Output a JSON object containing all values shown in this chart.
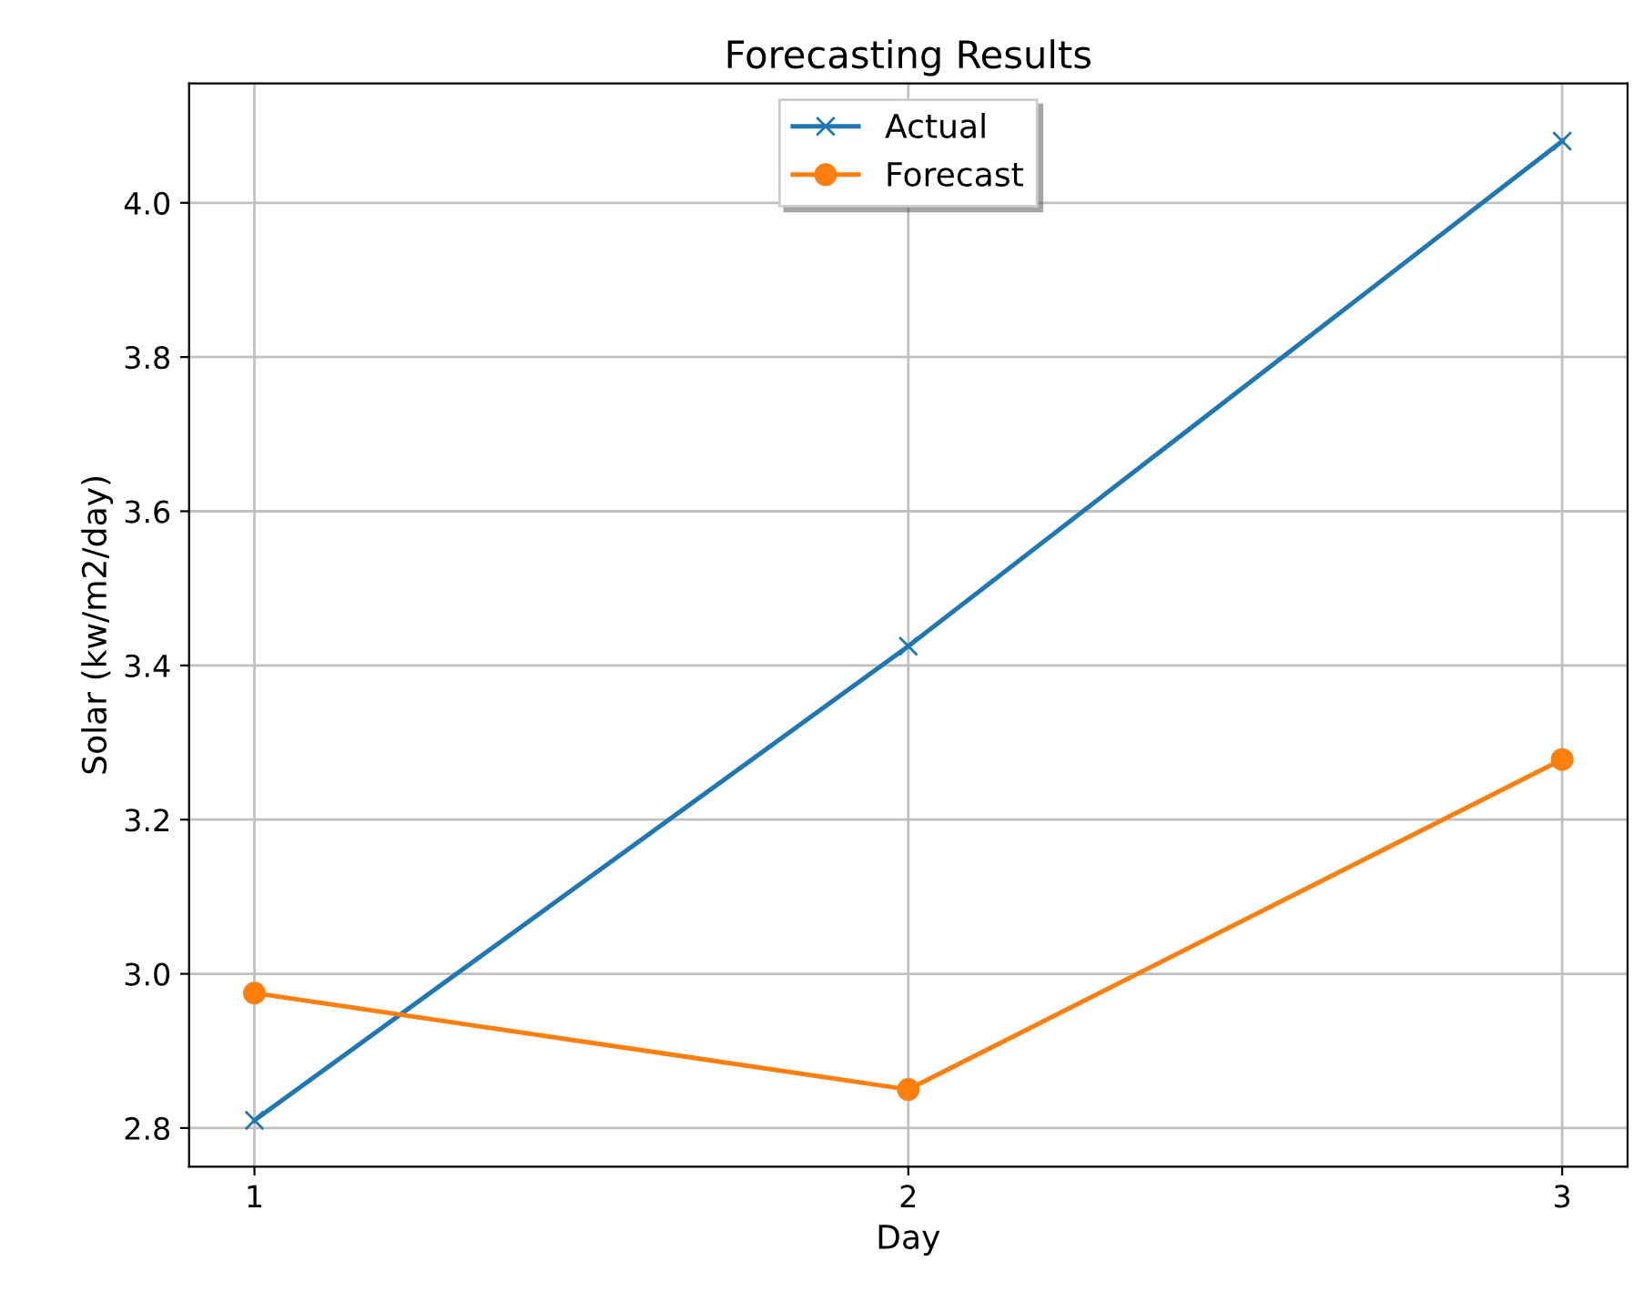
{
  "chart_data": {
    "type": "line",
    "title": "Forecasting Results",
    "xlabel": "Day",
    "ylabel": "Solar (kw/m2/day)",
    "x": [
      1,
      2,
      3
    ],
    "series": [
      {
        "name": "Actual",
        "color": "#1f77b4",
        "values": [
          2.81,
          3.425,
          4.08
        ],
        "marker": "cross"
      },
      {
        "name": "Forecast",
        "color": "#ff7f0e",
        "values": [
          2.975,
          2.85,
          3.278
        ],
        "marker": "circle"
      }
    ],
    "xlim": [
      0.9,
      3.1
    ],
    "xticks": [
      1,
      2,
      3
    ],
    "ylim": [
      2.75,
      4.155
    ],
    "yticks": [
      {
        "value": 2.8,
        "label": "2.8"
      },
      {
        "value": 3.0,
        "label": "3.0"
      },
      {
        "value": 3.2,
        "label": "3.2"
      },
      {
        "value": 3.4,
        "label": "3.4"
      },
      {
        "value": 3.6,
        "label": "3.6"
      },
      {
        "value": 3.8,
        "label": "3.8"
      },
      {
        "value": 4.0,
        "label": "4.0"
      }
    ],
    "grid": true,
    "legend": "top",
    "line_style": "solid"
  }
}
